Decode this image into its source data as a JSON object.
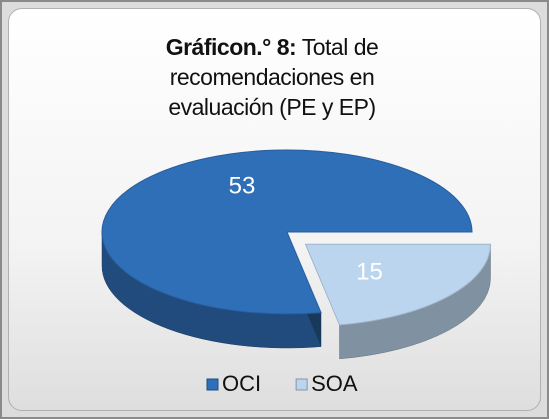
{
  "chart_data": {
    "type": "pie3d",
    "title": [
      "Gráficon.° 8:",
      "Total de recomendaciones en evaluación (PE y EP)"
    ],
    "categories": [
      "OCI",
      "SOA"
    ],
    "values": [
      53,
      15
    ],
    "colors": [
      "#2f6fb7",
      "#bcd5ee"
    ],
    "exploded": "SOA",
    "legend": "bottom"
  }
}
